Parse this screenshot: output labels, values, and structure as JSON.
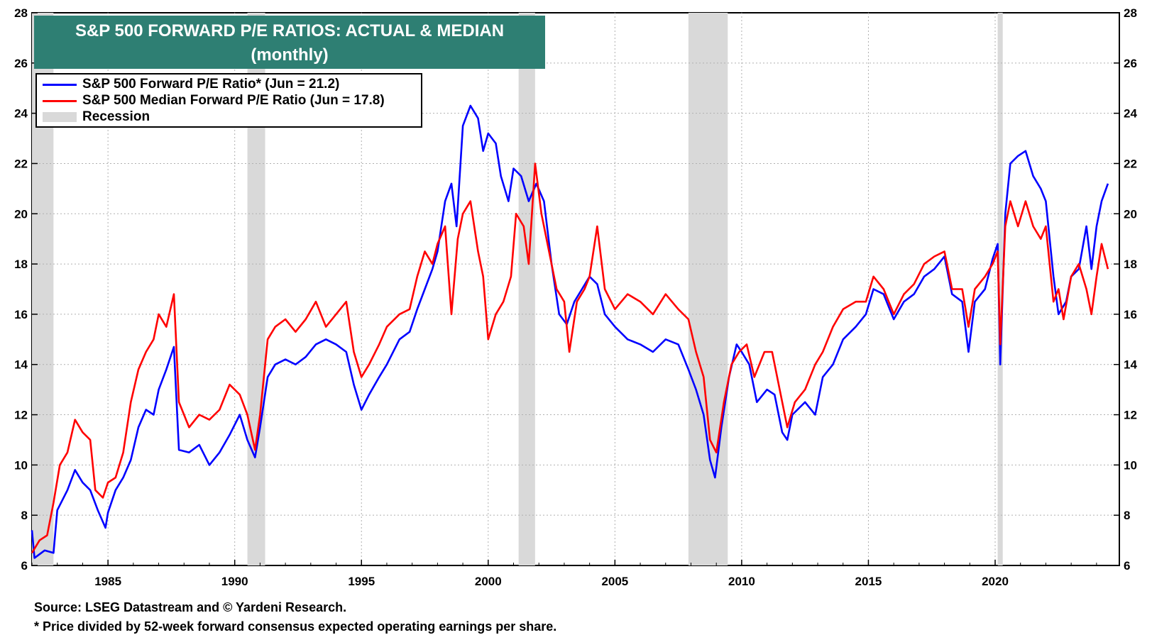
{
  "title": {
    "line1": "S&P 500 FORWARD P/E RATIOS: ACTUAL & MEDIAN",
    "line2": "(monthly)"
  },
  "legend": {
    "items": [
      {
        "label": "S&P 500 Forward P/E Ratio* (Jun = 21.2)",
        "color": "#0000ff",
        "kind": "line"
      },
      {
        "label": "S&P 500 Median Forward P/E Ratio  (Jun = 17.8)",
        "color": "#ff0000",
        "kind": "line"
      },
      {
        "label": "Recession",
        "color": "#d9d9d9",
        "kind": "box"
      }
    ]
  },
  "footnotes": {
    "source": "Source: LSEG Datastream and © Yardeni Research.",
    "note": "* Price divided by 52-week forward consensus expected operating earnings per share."
  },
  "chart_data": {
    "type": "line",
    "title": "S&P 500 FORWARD P/E RATIOS: ACTUAL & MEDIAN (monthly)",
    "xlim": [
      1982.0,
      2024.9
    ],
    "ylim": [
      6,
      28
    ],
    "yticks": [
      6,
      8,
      10,
      12,
      14,
      16,
      18,
      20,
      22,
      24,
      26,
      28
    ],
    "xticks": [
      1985,
      1990,
      1995,
      2000,
      2005,
      2010,
      2015,
      2020
    ],
    "grid": true,
    "recessions": [
      [
        1982.0,
        1982.85
      ],
      [
        1990.5,
        1991.2
      ],
      [
        2001.2,
        2001.85
      ],
      [
        2007.9,
        2009.45
      ],
      [
        2020.1,
        2020.3
      ]
    ],
    "series": [
      {
        "name": "S&P 500 Forward P/E Ratio* (Jun = 21.2)",
        "color": "#0000ff",
        "points": [
          [
            1982.0,
            7.4
          ],
          [
            1982.1,
            6.3
          ],
          [
            1982.5,
            6.6
          ],
          [
            1982.85,
            6.5
          ],
          [
            1983.0,
            8.2
          ],
          [
            1983.4,
            9.0
          ],
          [
            1983.7,
            9.8
          ],
          [
            1984.0,
            9.3
          ],
          [
            1984.3,
            9.0
          ],
          [
            1984.6,
            8.2
          ],
          [
            1984.9,
            7.5
          ],
          [
            1985.0,
            8.1
          ],
          [
            1985.3,
            9.0
          ],
          [
            1985.6,
            9.5
          ],
          [
            1985.9,
            10.2
          ],
          [
            1986.2,
            11.5
          ],
          [
            1986.5,
            12.2
          ],
          [
            1986.8,
            12.0
          ],
          [
            1987.0,
            13.0
          ],
          [
            1987.3,
            13.8
          ],
          [
            1987.6,
            14.7
          ],
          [
            1987.8,
            10.6
          ],
          [
            1988.2,
            10.5
          ],
          [
            1988.6,
            10.8
          ],
          [
            1989.0,
            10.0
          ],
          [
            1989.4,
            10.5
          ],
          [
            1989.8,
            11.2
          ],
          [
            1990.2,
            12.0
          ],
          [
            1990.5,
            11.0
          ],
          [
            1990.8,
            10.3
          ],
          [
            1991.0,
            11.5
          ],
          [
            1991.3,
            13.5
          ],
          [
            1991.6,
            14.0
          ],
          [
            1992.0,
            14.2
          ],
          [
            1992.4,
            14.0
          ],
          [
            1992.8,
            14.3
          ],
          [
            1993.2,
            14.8
          ],
          [
            1993.6,
            15.0
          ],
          [
            1994.0,
            14.8
          ],
          [
            1994.4,
            14.5
          ],
          [
            1994.7,
            13.2
          ],
          [
            1995.0,
            12.2
          ],
          [
            1995.3,
            12.8
          ],
          [
            1995.7,
            13.5
          ],
          [
            1996.0,
            14.0
          ],
          [
            1996.5,
            15.0
          ],
          [
            1996.9,
            15.3
          ],
          [
            1997.2,
            16.2
          ],
          [
            1997.5,
            17.0
          ],
          [
            1997.8,
            17.8
          ],
          [
            1998.0,
            18.5
          ],
          [
            1998.3,
            20.5
          ],
          [
            1998.55,
            21.2
          ],
          [
            1998.75,
            19.5
          ],
          [
            1999.0,
            23.5
          ],
          [
            1999.3,
            24.3
          ],
          [
            1999.6,
            23.8
          ],
          [
            1999.8,
            22.5
          ],
          [
            2000.0,
            23.2
          ],
          [
            2000.3,
            22.8
          ],
          [
            2000.5,
            21.5
          ],
          [
            2000.8,
            20.5
          ],
          [
            2001.0,
            21.8
          ],
          [
            2001.3,
            21.5
          ],
          [
            2001.6,
            20.5
          ],
          [
            2001.9,
            21.2
          ],
          [
            2002.2,
            20.5
          ],
          [
            2002.5,
            18.0
          ],
          [
            2002.8,
            16.0
          ],
          [
            2003.1,
            15.6
          ],
          [
            2003.4,
            16.5
          ],
          [
            2003.7,
            17.0
          ],
          [
            2004.0,
            17.5
          ],
          [
            2004.3,
            17.2
          ],
          [
            2004.6,
            16.0
          ],
          [
            2005.0,
            15.5
          ],
          [
            2005.5,
            15.0
          ],
          [
            2006.0,
            14.8
          ],
          [
            2006.5,
            14.5
          ],
          [
            2007.0,
            15.0
          ],
          [
            2007.5,
            14.8
          ],
          [
            2007.9,
            13.8
          ],
          [
            2008.2,
            13.0
          ],
          [
            2008.5,
            12.0
          ],
          [
            2008.75,
            10.2
          ],
          [
            2008.95,
            9.5
          ],
          [
            2009.2,
            11.5
          ],
          [
            2009.5,
            13.5
          ],
          [
            2009.8,
            14.8
          ],
          [
            2010.0,
            14.5
          ],
          [
            2010.3,
            14.0
          ],
          [
            2010.6,
            12.5
          ],
          [
            2011.0,
            13.0
          ],
          [
            2011.3,
            12.8
          ],
          [
            2011.6,
            11.3
          ],
          [
            2011.8,
            11.0
          ],
          [
            2012.0,
            12.0
          ],
          [
            2012.5,
            12.5
          ],
          [
            2012.9,
            12.0
          ],
          [
            2013.2,
            13.5
          ],
          [
            2013.6,
            14.0
          ],
          [
            2014.0,
            15.0
          ],
          [
            2014.5,
            15.5
          ],
          [
            2014.9,
            16.0
          ],
          [
            2015.2,
            17.0
          ],
          [
            2015.6,
            16.8
          ],
          [
            2016.0,
            15.8
          ],
          [
            2016.4,
            16.5
          ],
          [
            2016.8,
            16.8
          ],
          [
            2017.2,
            17.5
          ],
          [
            2017.6,
            17.8
          ],
          [
            2018.0,
            18.3
          ],
          [
            2018.3,
            16.8
          ],
          [
            2018.7,
            16.5
          ],
          [
            2018.95,
            14.5
          ],
          [
            2019.2,
            16.5
          ],
          [
            2019.6,
            17.0
          ],
          [
            2019.9,
            18.2
          ],
          [
            2020.1,
            18.8
          ],
          [
            2020.2,
            14.0
          ],
          [
            2020.4,
            20.0
          ],
          [
            2020.6,
            22.0
          ],
          [
            2020.9,
            22.3
          ],
          [
            2021.2,
            22.5
          ],
          [
            2021.5,
            21.5
          ],
          [
            2021.8,
            21.0
          ],
          [
            2022.0,
            20.5
          ],
          [
            2022.3,
            17.5
          ],
          [
            2022.5,
            16.0
          ],
          [
            2022.8,
            16.5
          ],
          [
            2023.0,
            17.5
          ],
          [
            2023.3,
            17.8
          ],
          [
            2023.6,
            19.5
          ],
          [
            2023.8,
            17.8
          ],
          [
            2024.0,
            19.5
          ],
          [
            2024.2,
            20.5
          ],
          [
            2024.45,
            21.2
          ]
        ]
      },
      {
        "name": "S&P 500 Median Forward P/E Ratio  (Jun = 17.8)",
        "color": "#ff0000",
        "points": [
          [
            1982.0,
            6.5
          ],
          [
            1982.3,
            7.0
          ],
          [
            1982.6,
            7.2
          ],
          [
            1982.85,
            8.5
          ],
          [
            1983.1,
            10.0
          ],
          [
            1983.4,
            10.5
          ],
          [
            1983.7,
            11.8
          ],
          [
            1984.0,
            11.3
          ],
          [
            1984.3,
            11.0
          ],
          [
            1984.5,
            9.0
          ],
          [
            1984.8,
            8.7
          ],
          [
            1985.0,
            9.3
          ],
          [
            1985.3,
            9.5
          ],
          [
            1985.6,
            10.5
          ],
          [
            1985.9,
            12.5
          ],
          [
            1986.2,
            13.8
          ],
          [
            1986.5,
            14.5
          ],
          [
            1986.8,
            15.0
          ],
          [
            1987.0,
            16.0
          ],
          [
            1987.3,
            15.5
          ],
          [
            1987.6,
            16.8
          ],
          [
            1987.8,
            12.5
          ],
          [
            1988.2,
            11.5
          ],
          [
            1988.6,
            12.0
          ],
          [
            1989.0,
            11.8
          ],
          [
            1989.4,
            12.2
          ],
          [
            1989.8,
            13.2
          ],
          [
            1990.2,
            12.8
          ],
          [
            1990.5,
            12.0
          ],
          [
            1990.8,
            10.6
          ],
          [
            1991.0,
            12.0
          ],
          [
            1991.3,
            15.0
          ],
          [
            1991.6,
            15.5
          ],
          [
            1992.0,
            15.8
          ],
          [
            1992.4,
            15.3
          ],
          [
            1992.8,
            15.8
          ],
          [
            1993.2,
            16.5
          ],
          [
            1993.6,
            15.5
          ],
          [
            1994.0,
            16.0
          ],
          [
            1994.4,
            16.5
          ],
          [
            1994.7,
            14.5
          ],
          [
            1995.0,
            13.5
          ],
          [
            1995.3,
            14.0
          ],
          [
            1995.7,
            14.8
          ],
          [
            1996.0,
            15.5
          ],
          [
            1996.5,
            16.0
          ],
          [
            1996.9,
            16.2
          ],
          [
            1997.2,
            17.5
          ],
          [
            1997.5,
            18.5
          ],
          [
            1997.8,
            18.0
          ],
          [
            1998.0,
            18.8
          ],
          [
            1998.3,
            19.5
          ],
          [
            1998.55,
            16.0
          ],
          [
            1998.8,
            19.0
          ],
          [
            1999.0,
            20.0
          ],
          [
            1999.3,
            20.5
          ],
          [
            1999.6,
            18.5
          ],
          [
            1999.8,
            17.5
          ],
          [
            2000.0,
            15.0
          ],
          [
            2000.3,
            16.0
          ],
          [
            2000.6,
            16.5
          ],
          [
            2000.9,
            17.5
          ],
          [
            2001.1,
            20.0
          ],
          [
            2001.4,
            19.5
          ],
          [
            2001.6,
            18.0
          ],
          [
            2001.85,
            22.0
          ],
          [
            2002.1,
            20.0
          ],
          [
            2002.4,
            18.5
          ],
          [
            2002.7,
            17.0
          ],
          [
            2003.0,
            16.5
          ],
          [
            2003.2,
            14.5
          ],
          [
            2003.5,
            16.5
          ],
          [
            2003.8,
            17.0
          ],
          [
            2004.0,
            17.5
          ],
          [
            2004.3,
            19.5
          ],
          [
            2004.6,
            17.0
          ],
          [
            2005.0,
            16.2
          ],
          [
            2005.5,
            16.8
          ],
          [
            2006.0,
            16.5
          ],
          [
            2006.5,
            16.0
          ],
          [
            2007.0,
            16.8
          ],
          [
            2007.5,
            16.2
          ],
          [
            2007.9,
            15.8
          ],
          [
            2008.2,
            14.5
          ],
          [
            2008.5,
            13.5
          ],
          [
            2008.75,
            11.0
          ],
          [
            2009.0,
            10.5
          ],
          [
            2009.3,
            12.5
          ],
          [
            2009.6,
            14.0
          ],
          [
            2009.9,
            14.5
          ],
          [
            2010.2,
            14.8
          ],
          [
            2010.5,
            13.5
          ],
          [
            2010.9,
            14.5
          ],
          [
            2011.2,
            14.5
          ],
          [
            2011.5,
            13.0
          ],
          [
            2011.8,
            11.5
          ],
          [
            2012.1,
            12.5
          ],
          [
            2012.5,
            13.0
          ],
          [
            2012.9,
            14.0
          ],
          [
            2013.2,
            14.5
          ],
          [
            2013.6,
            15.5
          ],
          [
            2014.0,
            16.2
          ],
          [
            2014.5,
            16.5
          ],
          [
            2014.9,
            16.5
          ],
          [
            2015.2,
            17.5
          ],
          [
            2015.6,
            17.0
          ],
          [
            2016.0,
            16.0
          ],
          [
            2016.4,
            16.8
          ],
          [
            2016.8,
            17.2
          ],
          [
            2017.2,
            18.0
          ],
          [
            2017.6,
            18.3
          ],
          [
            2018.0,
            18.5
          ],
          [
            2018.3,
            17.0
          ],
          [
            2018.7,
            17.0
          ],
          [
            2018.95,
            15.5
          ],
          [
            2019.2,
            17.0
          ],
          [
            2019.6,
            17.5
          ],
          [
            2019.9,
            18.0
          ],
          [
            2020.1,
            18.5
          ],
          [
            2020.2,
            14.8
          ],
          [
            2020.4,
            19.5
          ],
          [
            2020.6,
            20.5
          ],
          [
            2020.9,
            19.5
          ],
          [
            2021.2,
            20.5
          ],
          [
            2021.5,
            19.5
          ],
          [
            2021.8,
            19.0
          ],
          [
            2022.0,
            19.5
          ],
          [
            2022.3,
            16.5
          ],
          [
            2022.5,
            17.0
          ],
          [
            2022.7,
            15.8
          ],
          [
            2023.0,
            17.5
          ],
          [
            2023.3,
            18.0
          ],
          [
            2023.6,
            17.0
          ],
          [
            2023.8,
            16.0
          ],
          [
            2024.0,
            17.5
          ],
          [
            2024.2,
            18.8
          ],
          [
            2024.45,
            17.8
          ]
        ]
      }
    ]
  }
}
